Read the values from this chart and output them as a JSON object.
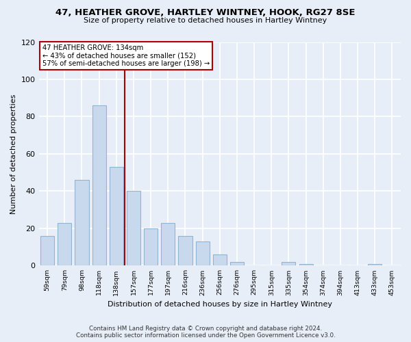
{
  "title": "47, HEATHER GROVE, HARTLEY WINTNEY, HOOK, RG27 8SE",
  "subtitle": "Size of property relative to detached houses in Hartley Wintney",
  "xlabel": "Distribution of detached houses by size in Hartley Wintney",
  "ylabel": "Number of detached properties",
  "bar_labels": [
    "59sqm",
    "79sqm",
    "98sqm",
    "118sqm",
    "138sqm",
    "157sqm",
    "177sqm",
    "197sqm",
    "216sqm",
    "236sqm",
    "256sqm",
    "276sqm",
    "295sqm",
    "315sqm",
    "335sqm",
    "354sqm",
    "374sqm",
    "394sqm",
    "413sqm",
    "433sqm",
    "453sqm"
  ],
  "bar_values": [
    16,
    23,
    46,
    86,
    53,
    40,
    20,
    23,
    16,
    13,
    6,
    2,
    0,
    0,
    2,
    1,
    0,
    0,
    0,
    1,
    0
  ],
  "bar_color": "#c8d9ed",
  "bar_edge_color": "#91b4d5",
  "red_line_x": 4.5,
  "marker_label": "47 HEATHER GROVE: 134sqm",
  "annotation_line1": "← 43% of detached houses are smaller (152)",
  "annotation_line2": "57% of semi-detached houses are larger (198) →",
  "marker_color": "#aa0000",
  "ylim": [
    0,
    120
  ],
  "yticks": [
    0,
    20,
    40,
    60,
    80,
    100,
    120
  ],
  "bg_color": "#e8eef8",
  "grid_color": "#ffffff",
  "footer_line1": "Contains HM Land Registry data © Crown copyright and database right 2024.",
  "footer_line2": "Contains public sector information licensed under the Open Government Licence v3.0."
}
